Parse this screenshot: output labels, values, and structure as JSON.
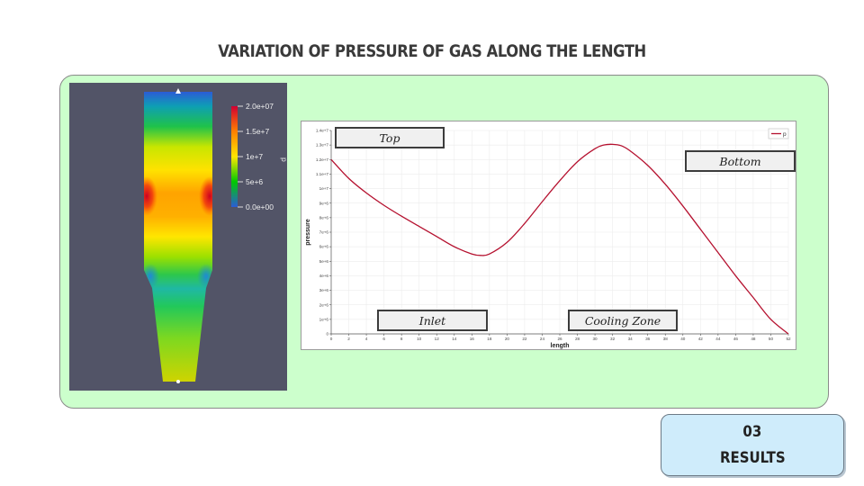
{
  "slide": {
    "title": "VARIATION OF PRESSURE OF GAS ALONG THE LENGTH",
    "section_number": "03",
    "section_label": "RESULTS"
  },
  "colorbar": {
    "labels": [
      "2.0e+07",
      "1.5e+7",
      "1e+7",
      "5e+6",
      "0.0e+00"
    ],
    "variable": "p",
    "colors": [
      "#d10033",
      "#ff7f00",
      "#ffe600",
      "#00c800",
      "#2b5cd6"
    ]
  },
  "annotations": {
    "top": "Top",
    "bottom": "Bottom",
    "inlet": "Inlet",
    "cooling_zone": "Cooling Zone"
  },
  "chart_data": {
    "type": "line",
    "xlabel": "length",
    "ylabel": "pressure",
    "xlim": [
      0,
      52
    ],
    "ylim": [
      0,
      14000000
    ],
    "x_ticks": [
      0,
      2,
      4,
      6,
      8,
      10,
      12,
      14,
      16,
      18,
      20,
      22,
      24,
      26,
      28,
      30,
      32,
      34,
      36,
      38,
      40,
      42,
      44,
      46,
      48,
      50,
      52
    ],
    "y_tick_labels": [
      "0",
      "1e+6",
      "2e+6",
      "3e+6",
      "4e+6",
      "5e+6",
      "6e+6",
      "7e+6",
      "8e+6",
      "9e+6",
      "1e+7",
      "1.1e+7",
      "1.2e+7",
      "1.3e+7",
      "1.4e+7"
    ],
    "grid": true,
    "legend_position": "top-right",
    "series": [
      {
        "name": "p",
        "color": "#b5112f",
        "x": [
          0,
          2,
          4,
          6,
          8,
          10,
          12,
          14,
          16,
          17,
          18,
          20,
          22,
          24,
          26,
          28,
          30,
          31,
          32,
          33,
          34,
          36,
          38,
          40,
          42,
          44,
          46,
          48,
          50,
          52
        ],
        "y": [
          12000000,
          10700000,
          9700000,
          8850000,
          8100000,
          7400000,
          6700000,
          6000000,
          5500000,
          5400000,
          5500000,
          6300000,
          7600000,
          9100000,
          10550000,
          11850000,
          12750000,
          13000000,
          13050000,
          12950000,
          12600000,
          11600000,
          10300000,
          8800000,
          7200000,
          5600000,
          4000000,
          2500000,
          1000000,
          0
        ]
      }
    ]
  }
}
